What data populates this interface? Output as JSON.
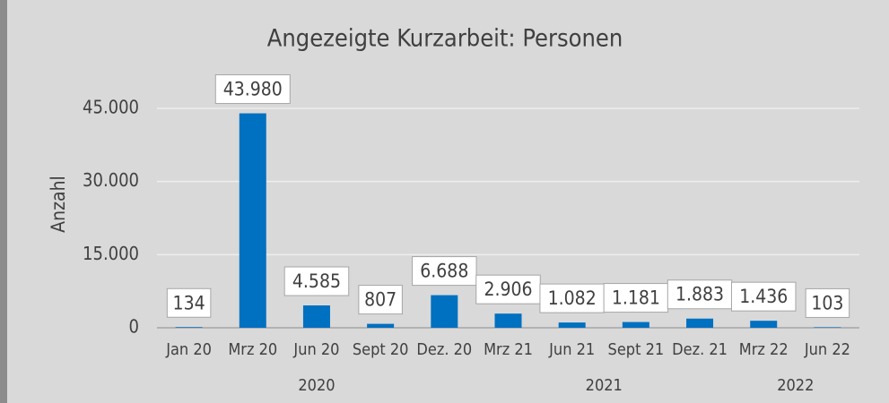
{
  "chart_data": {
    "type": "bar",
    "title": "Angezeigte Kurzarbeit: Personen",
    "y_label": "Anzahl",
    "categories": [
      "Jan 20",
      "Mrz 20",
      "Jun 20",
      "Sept 20",
      "Dez. 20",
      "Mrz 21",
      "Jun 21",
      "Sept 21",
      "Dez. 21",
      "Mrz 22",
      "Jun 22"
    ],
    "values": [
      134,
      43980,
      4585,
      807,
      6688,
      2906,
      1082,
      1181,
      1883,
      1436,
      103
    ],
    "value_labels": [
      "134",
      "43.980",
      "4.585",
      "807",
      "6.688",
      "2.906",
      "1.082",
      "1.181",
      "1.883",
      "1.436",
      "103"
    ],
    "x_groups": [
      {
        "label": "2020",
        "span": 5
      },
      {
        "label": "2021",
        "span": 4
      },
      {
        "label": "2022",
        "span": 2
      }
    ],
    "color": "#0070c0",
    "ylim": [
      0,
      45000
    ],
    "yticks": [
      0,
      {
        "value": 15000,
        "label": "15.000"
      },
      {
        "value": 30000,
        "label": "30.000"
      },
      {
        "value": 45000,
        "label": "45.000"
      }
    ],
    "grid": true
  }
}
